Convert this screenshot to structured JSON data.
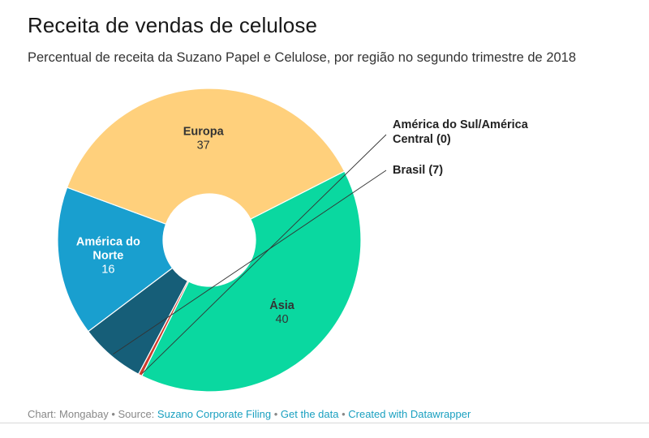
{
  "title": "Receita de vendas de celulose",
  "subtitle": "Percentual de receita da Suzano Papel e Celulose, por região no segundo trimestre de 2018",
  "chart_data": {
    "type": "pie",
    "donut": true,
    "unit": "%",
    "slices": [
      {
        "label": "Ásia",
        "value": 40,
        "color": "#0ad8a0",
        "text_color": "#333333",
        "label_position": "inside",
        "label_lines": [
          "Ásia"
        ],
        "value_text": "40"
      },
      {
        "label": "América do Sul/América Central",
        "value": 0.4,
        "color": "#cc3b2d",
        "text_color": "#222222",
        "label_position": "outside",
        "label_lines": [
          "América do Sul/América",
          "Central (0)"
        ]
      },
      {
        "label": "Brasil",
        "value": 7,
        "color": "#165e78",
        "text_color": "#222222",
        "label_position": "outside",
        "label_lines": [
          "Brasil (7)"
        ]
      },
      {
        "label": "América do Norte",
        "value": 16,
        "color": "#199fcf",
        "text_color": "#ffffff",
        "label_position": "inside",
        "label_lines": [
          "América do",
          "Norte"
        ],
        "value_text": "16"
      },
      {
        "label": "Europa",
        "value": 37,
        "color": "#ffd07c",
        "text_color": "#333333",
        "label_position": "inside",
        "label_lines": [
          "Europa"
        ],
        "value_text": "37"
      }
    ]
  },
  "footer": {
    "prefix": "Chart: Mongabay • Source: ",
    "source_link": "Suzano Corporate Filing",
    "sep1": " • ",
    "data_link": "Get the data",
    "sep2": " • ",
    "created_link": "Created with Datawrapper"
  }
}
